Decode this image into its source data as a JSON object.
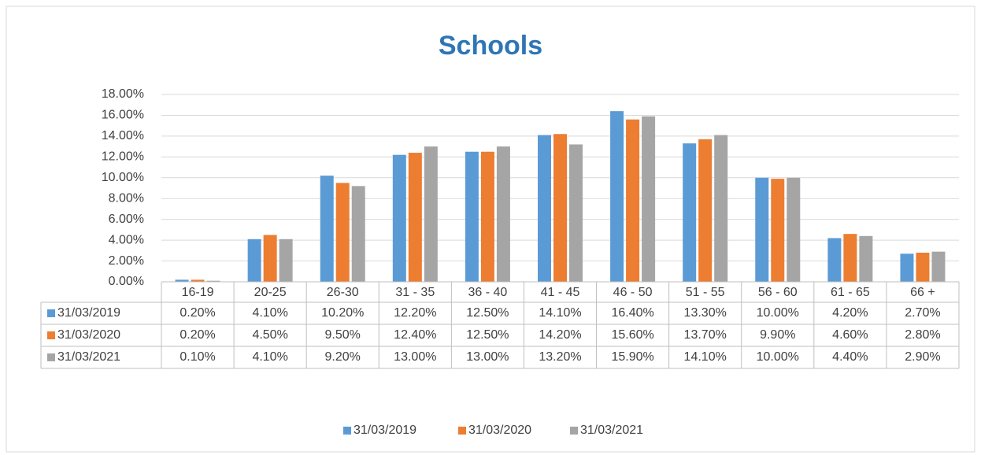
{
  "chart_data": {
    "type": "bar",
    "title": "Schools",
    "categories": [
      "16-19",
      "20-25",
      "26-30",
      "31 - 35",
      "36 - 40",
      "41 - 45",
      "46 - 50",
      "51 - 55",
      "56 - 60",
      "61 - 65",
      "66 +"
    ],
    "series": [
      {
        "name": "31/03/2019",
        "color": "#5b9bd5",
        "values": [
          0.2,
          4.1,
          10.2,
          12.2,
          12.5,
          14.1,
          16.4,
          13.3,
          10.0,
          4.2,
          2.7
        ],
        "value_labels": [
          "0.20%",
          "4.10%",
          "10.20%",
          "12.20%",
          "12.50%",
          "14.10%",
          "16.40%",
          "13.30%",
          "10.00%",
          "4.20%",
          "2.70%"
        ]
      },
      {
        "name": "31/03/2020",
        "color": "#ed7d31",
        "values": [
          0.2,
          4.5,
          9.5,
          12.4,
          12.5,
          14.2,
          15.6,
          13.7,
          9.9,
          4.6,
          2.8
        ],
        "value_labels": [
          "0.20%",
          "4.50%",
          "9.50%",
          "12.40%",
          "12.50%",
          "14.20%",
          "15.60%",
          "13.70%",
          "9.90%",
          "4.60%",
          "2.80%"
        ]
      },
      {
        "name": "31/03/2021",
        "color": "#a5a5a5",
        "values": [
          0.1,
          4.1,
          9.2,
          13.0,
          13.0,
          13.2,
          15.9,
          14.1,
          10.0,
          4.4,
          2.9
        ],
        "value_labels": [
          "0.10%",
          "4.10%",
          "9.20%",
          "13.00%",
          "13.00%",
          "13.20%",
          "15.90%",
          "14.10%",
          "10.00%",
          "4.40%",
          "2.90%"
        ]
      }
    ],
    "ylim": [
      0,
      18
    ],
    "yticks": [
      {
        "value": 0,
        "label": "0.00%"
      },
      {
        "value": 2,
        "label": "2.00%"
      },
      {
        "value": 4,
        "label": "4.00%"
      },
      {
        "value": 6,
        "label": "6.00%"
      },
      {
        "value": 8,
        "label": "8.00%"
      },
      {
        "value": 10,
        "label": "10.00%"
      },
      {
        "value": 12,
        "label": "12.00%"
      },
      {
        "value": 14,
        "label": "14.00%"
      },
      {
        "value": 16,
        "label": "16.00%"
      },
      {
        "value": 18,
        "label": "18.00%"
      }
    ],
    "grid": true,
    "legend": "bottom"
  }
}
